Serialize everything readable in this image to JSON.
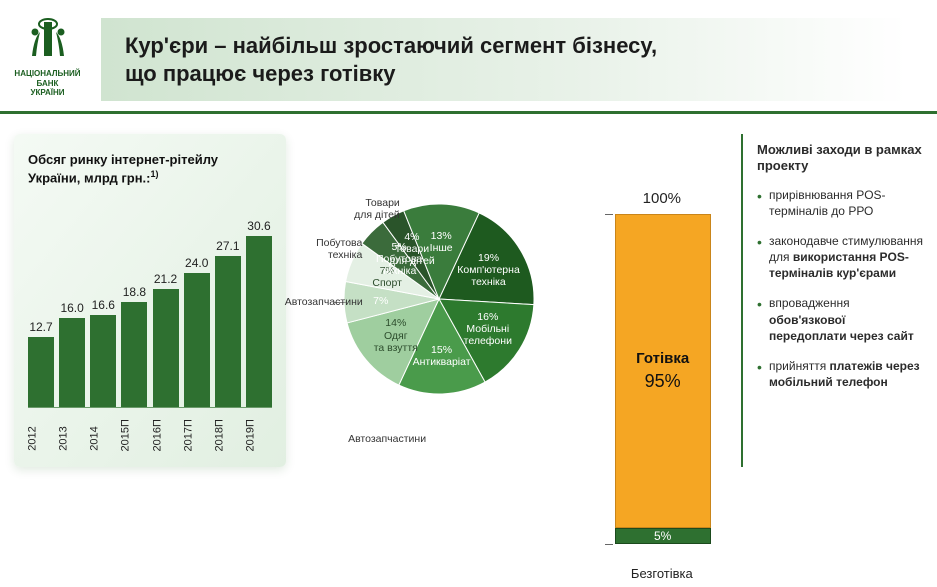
{
  "header": {
    "logo_line1": "НАЦІОНАЛЬНИЙ",
    "logo_line2": "БАНК",
    "logo_line3": "УКРАЇНИ",
    "title_line1": "Кур'єри – найбільш зростаючий сегмент бізнесу,",
    "title_line2": "що працює через готівку",
    "accent_color": "#2e7030"
  },
  "bar_chart": {
    "title": "Обсяг ринку інтернет-рітейлу України, млрд грн.:",
    "footnote_marker": "1)",
    "type": "bar",
    "categories": [
      "2012",
      "2013",
      "2014",
      "2015П",
      "2016П",
      "2017П",
      "2018П",
      "2019П"
    ],
    "values": [
      12.7,
      16.0,
      16.6,
      18.8,
      21.2,
      24.0,
      27.1,
      30.6
    ],
    "bar_color": "#2e7030",
    "ymax": 32,
    "panel_bg_from": "#f4faf4",
    "panel_bg_to": "#e1efe1"
  },
  "pie_chart": {
    "type": "pie",
    "slices": [
      {
        "label": "Комп'ютерна техніка",
        "value": 19,
        "color": "#1e5a1f",
        "label_inside": true
      },
      {
        "label": "Мобільні телефони",
        "value": 16,
        "color": "#2d7a2e",
        "label_inside": true
      },
      {
        "label": "Антикваріат",
        "value": 15,
        "color": "#4a9b4b",
        "label_inside": true
      },
      {
        "label": "Одяг та взуття",
        "value": 14,
        "color": "#9fce9f",
        "label_inside": true,
        "dark_text": true
      },
      {
        "label": "Автозапчастини",
        "value": 7,
        "color": "#c5e0c5",
        "label_inside": false,
        "leader_to": "bottom-left"
      },
      {
        "label": "Спорт",
        "value": 7,
        "color": "#e4f0e4",
        "label_inside": true,
        "dark_text": true
      },
      {
        "label": "Побутова техніка",
        "value": 5,
        "color": "#3b6b3b",
        "label_inside": true
      },
      {
        "label": "Товари для дітей",
        "value": 4,
        "color": "#2a542a",
        "label_inside": true
      },
      {
        "label": "Інше",
        "value": 13,
        "color": "#3a7c3c",
        "label_inside": true
      }
    ],
    "radius": 95,
    "start_angle_deg": -65
  },
  "stacked": {
    "type": "stacked_bar",
    "top_label": "100%",
    "cash_label": "Готівка",
    "cash_value": "95%",
    "cash_color": "#f5a623",
    "cash_border": "#c9851a",
    "card_value": "5%",
    "card_color": "#2e7030",
    "card_border": "#1b4a1d",
    "bottom_label": "Безготівка"
  },
  "measures": {
    "heading": "Можливі заходи в рамках проекту",
    "items": [
      {
        "text": "прирівнювання POS-терміналів до РРО",
        "bold": []
      },
      {
        "text": "законодавче стимулювання для <b>використання POS-терміналів кур'єрами</b>",
        "bold": []
      },
      {
        "text": "впровадження <b>обов'язкової передоплати через сайт</b>",
        "bold": []
      },
      {
        "text": "прийняття <b>платежів через мобільний телефон</b>",
        "bold": []
      }
    ]
  }
}
